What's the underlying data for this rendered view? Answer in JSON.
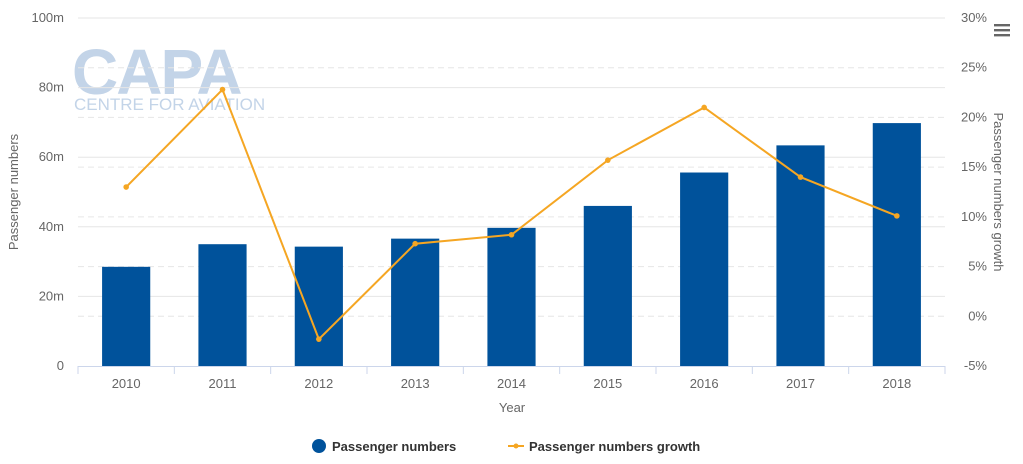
{
  "chart_data": {
    "type": "bar",
    "categories": [
      "2010",
      "2011",
      "2012",
      "2013",
      "2014",
      "2015",
      "2016",
      "2017",
      "2018"
    ],
    "series": [
      {
        "name": "Passenger numbers",
        "type": "bar",
        "axis": "left",
        "color": "#00529b",
        "values": [
          28.5,
          35.0,
          34.3,
          36.6,
          39.7,
          46.0,
          55.6,
          63.4,
          69.8
        ]
      },
      {
        "name": "Passenger numbers growth",
        "type": "line",
        "axis": "right",
        "color": "#f5a623",
        "values": [
          13.0,
          22.8,
          -2.3,
          7.3,
          8.2,
          15.7,
          21.0,
          14.0,
          10.1
        ]
      }
    ],
    "xlabel": "Year",
    "ylabel": "Passenger numbers",
    "y2label": "Passenger numbers growth",
    "ylim": [
      0,
      100
    ],
    "y2lim": [
      -5,
      30
    ],
    "yticks": [
      "0",
      "20m",
      "40m",
      "60m",
      "80m",
      "100m"
    ],
    "y2ticks": [
      "-5%",
      "0%",
      "5%",
      "10%",
      "15%",
      "20%",
      "25%",
      "30%"
    ],
    "grid": true,
    "legend": "bottom-center"
  },
  "watermark": {
    "logo_text": "CAPA",
    "tagline": "CENTRE FOR AVIATION"
  },
  "menu_icon": "hamburger-menu-icon"
}
